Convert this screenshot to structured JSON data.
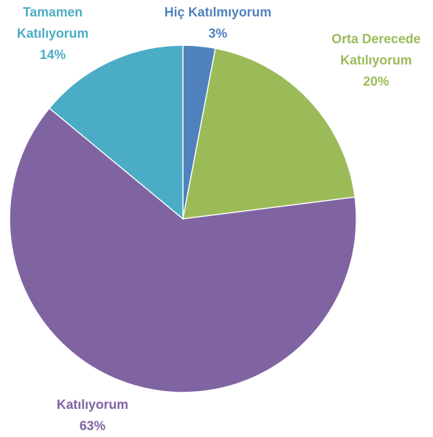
{
  "chart_data": {
    "type": "pie",
    "categories": [
      "Hiç Katılmıyorum",
      "Orta Derecede Katılıyorum",
      "Katılıyorum",
      "Tamamen Katılıyorum"
    ],
    "values": [
      3,
      20,
      63,
      14
    ],
    "value_labels": [
      "3%",
      "20%",
      "63%",
      "14%"
    ],
    "colors": [
      "#4f81bd",
      "#9bbb59",
      "#8064a2",
      "#4bacc6"
    ]
  }
}
